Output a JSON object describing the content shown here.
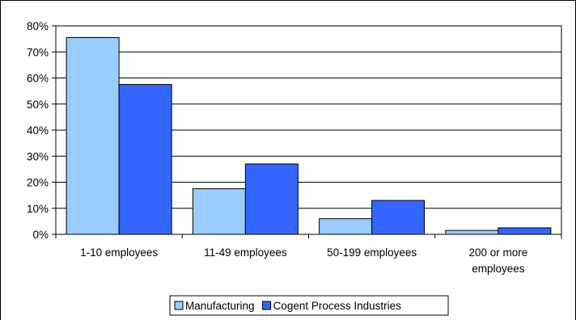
{
  "chart_data": {
    "type": "bar",
    "title": "",
    "xlabel": "",
    "ylabel": "",
    "ylim": [
      0,
      80
    ],
    "y_ticks": [
      0,
      10,
      20,
      30,
      40,
      50,
      60,
      70,
      80
    ],
    "y_tick_labels": [
      "0%",
      "10%",
      "20%",
      "30%",
      "40%",
      "50%",
      "60%",
      "70%",
      "80%"
    ],
    "y_unit": "%",
    "grid": "horizontal",
    "legend_position": "bottom",
    "categories": [
      [
        "1-10 employees"
      ],
      [
        "11-49 employees"
      ],
      [
        "50-199 employees"
      ],
      [
        "200 or more",
        "employees"
      ]
    ],
    "series": [
      {
        "name": "Manufacturing",
        "color": "#99CCFF",
        "values": [
          75.5,
          17.5,
          6,
          1.5
        ]
      },
      {
        "name": "Cogent Process Industries",
        "color": "#3366FF",
        "values": [
          57.5,
          27,
          13,
          2.5
        ]
      }
    ]
  }
}
